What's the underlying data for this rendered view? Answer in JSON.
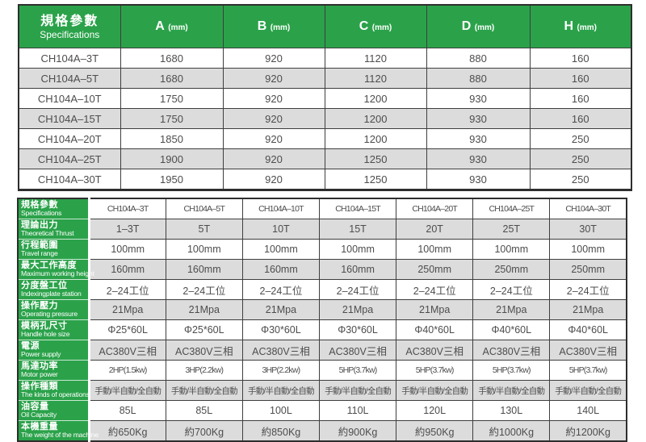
{
  "colors": {
    "green": "#2ba24a",
    "row_alt": "#dcdcdc",
    "border": "#3e3e3e",
    "text": "#4d4d4d",
    "header_text": "#ffffff"
  },
  "top_table": {
    "header": {
      "title_zh": "規格參數",
      "title_en": "Specifications",
      "columns": [
        {
          "letter": "A",
          "unit": "(mm)"
        },
        {
          "letter": "B",
          "unit": "(mm)"
        },
        {
          "letter": "C",
          "unit": "(mm)"
        },
        {
          "letter": "D",
          "unit": "(mm)"
        },
        {
          "letter": "H",
          "unit": "(mm)"
        }
      ]
    },
    "rows": [
      {
        "model": "CH104A–3T",
        "values": [
          "1680",
          "920",
          "1120",
          "880",
          "160"
        ]
      },
      {
        "model": "CH104A–5T",
        "values": [
          "1680",
          "920",
          "1120",
          "880",
          "160"
        ]
      },
      {
        "model": "CH104A–10T",
        "values": [
          "1750",
          "920",
          "1200",
          "930",
          "160"
        ]
      },
      {
        "model": "CH104A–15T",
        "values": [
          "1750",
          "920",
          "1200",
          "930",
          "160"
        ]
      },
      {
        "model": "CH104A–20T",
        "values": [
          "1850",
          "920",
          "1200",
          "930",
          "250"
        ]
      },
      {
        "model": "CH104A–25T",
        "values": [
          "1900",
          "920",
          "1250",
          "930",
          "250"
        ]
      },
      {
        "model": "CH104A–30T",
        "values": [
          "1950",
          "920",
          "1250",
          "930",
          "250"
        ]
      }
    ]
  },
  "bottom_table": {
    "rows": [
      {
        "label_zh": "規格參數",
        "label_en": "Specifications",
        "values": [
          "CH104A–3T",
          "CH104A–5T",
          "CH104A–10T",
          "CH104A–15T",
          "CH104A–20T",
          "CH104A–25T",
          "CH104A–30T"
        ]
      },
      {
        "label_zh": "理論出力",
        "label_en": "Theoretical Thrust",
        "values": [
          "1–3T",
          "5T",
          "10T",
          "15T",
          "20T",
          "25T",
          "30T"
        ]
      },
      {
        "label_zh": "行程範圍",
        "label_en": "Travel range",
        "values": [
          "100mm",
          "100mm",
          "100mm",
          "100mm",
          "100mm",
          "100mm",
          "100mm"
        ]
      },
      {
        "label_zh": "最大工作高度",
        "label_en": "Maximum working height",
        "values": [
          "160mm",
          "160mm",
          "160mm",
          "160mm",
          "250mm",
          "250mm",
          "250mm"
        ]
      },
      {
        "label_zh": "分度盤工位",
        "label_en": "Indexingplate station",
        "values": [
          "2–24工位",
          "2–24工位",
          "2–24工位",
          "2–24工位",
          "2–24工位",
          "2–24工位",
          "2–24工位"
        ]
      },
      {
        "label_zh": "操作壓力",
        "label_en": "Operating pressure",
        "values": [
          "21Mpa",
          "21Mpa",
          "21Mpa",
          "21Mpa",
          "21Mpa",
          "21Mpa",
          "21Mpa"
        ]
      },
      {
        "label_zh": "模柄孔尺寸",
        "label_en": "Handle hole size",
        "values": [
          "Φ25*60L",
          "Φ25*60L",
          "Φ30*60L",
          "Φ30*60L",
          "Φ40*60L",
          "Φ40*60L",
          "Φ40*60L"
        ]
      },
      {
        "label_zh": "電源",
        "label_en": "Power supply",
        "values": [
          "AC380V三相",
          "AC380V三相",
          "AC380V三相",
          "AC380V三相",
          "AC380V三相",
          "AC380V三相",
          "AC380V三相"
        ]
      },
      {
        "label_zh": "馬達功率",
        "label_en": "Motor power",
        "values": [
          "2HP(1.5kw)",
          "3HP(2.2kw)",
          "3HP(2.2kw)",
          "5HP(3.7kw)",
          "5HP(3.7kw)",
          "5HP(3.7kw)",
          "5HP(3.7kw)"
        ]
      },
      {
        "label_zh": "操作種類",
        "label_en": "The kinds of operations",
        "values": [
          "手動/半自動/全自動",
          "手動/半自動/全自動",
          "手動/半自動/全自動",
          "手動/半自動/全自動",
          "手動/半自動/全自動",
          "手動/半自動/全自動",
          "手動/半自動/全自動"
        ]
      },
      {
        "label_zh": "油容量",
        "label_en": "Oil Capacity",
        "values": [
          "85L",
          "85L",
          "100L",
          "110L",
          "120L",
          "130L",
          "140L"
        ]
      },
      {
        "label_zh": "本機重量",
        "label_en": "The weight of the machine",
        "values": [
          "約650Kg",
          "約700Kg",
          "約850Kg",
          "約900Kg",
          "約950Kg",
          "約1000Kg",
          "約1200Kg"
        ]
      }
    ]
  }
}
